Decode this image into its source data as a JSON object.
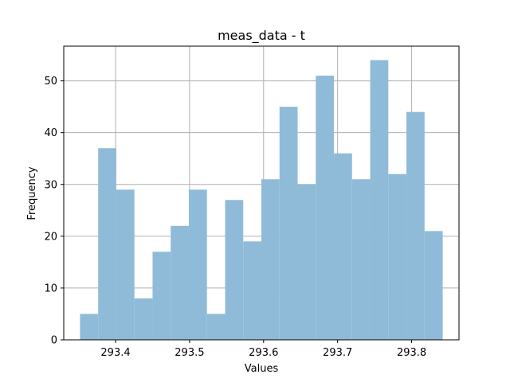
{
  "chart_data": {
    "type": "bar",
    "title": "meas_data - t",
    "xlabel": "Values",
    "ylabel": "Frequency",
    "grid": true,
    "bar_color": "#8fbbd9",
    "bin_start": 293.352,
    "bin_end": 293.842,
    "bin_counts": [
      5,
      37,
      29,
      8,
      17,
      22,
      29,
      5,
      27,
      19,
      31,
      45,
      30,
      51,
      36,
      31,
      54,
      32,
      44,
      21
    ],
    "xlim": [
      293.33,
      293.864
    ],
    "ylim": [
      0,
      56.7
    ],
    "x_ticks": [
      293.4,
      293.5,
      293.6,
      293.7,
      293.8
    ],
    "x_tick_labels": [
      "293.4",
      "293.5",
      "293.6",
      "293.7",
      "293.8"
    ],
    "y_ticks": [
      0,
      10,
      20,
      30,
      40,
      50
    ],
    "y_tick_labels": [
      "0",
      "10",
      "20",
      "30",
      "40",
      "50"
    ]
  }
}
